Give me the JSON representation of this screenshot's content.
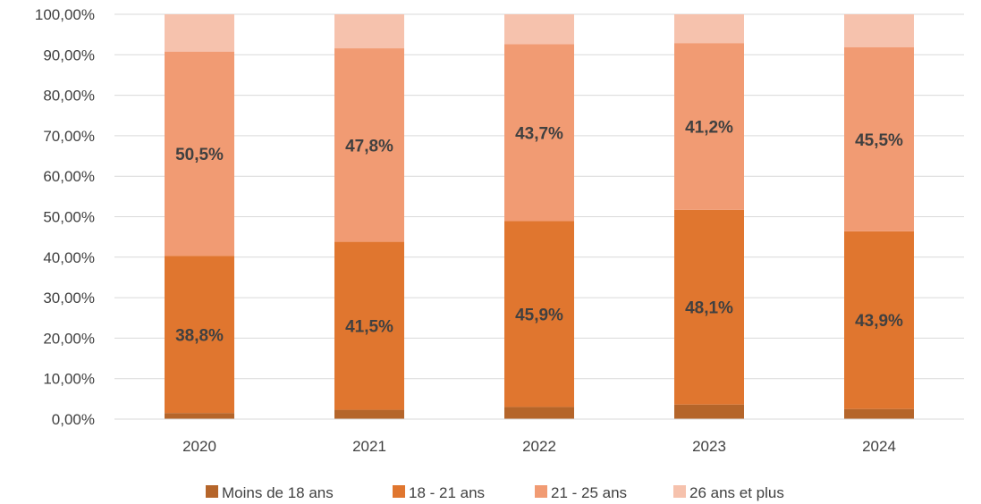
{
  "chart_data": {
    "type": "bar",
    "stacked": true,
    "categories": [
      "2020",
      "2021",
      "2022",
      "2023",
      "2024"
    ],
    "series": [
      {
        "name": "Moins de 18 ans",
        "color": "#B5652A",
        "values": [
          1.5,
          2.3,
          3.0,
          3.6,
          2.5
        ]
      },
      {
        "name": "18 - 21 ans",
        "color": "#E0762F",
        "values": [
          38.8,
          41.5,
          45.9,
          48.1,
          43.9
        ]
      },
      {
        "name": "21 - 25 ans",
        "color": "#F19B73",
        "values": [
          50.5,
          47.8,
          43.7,
          41.2,
          45.5
        ]
      },
      {
        "name": "26 ans et plus",
        "color": "#F6C2AD",
        "values": [
          9.2,
          8.4,
          7.4,
          7.1,
          8.1
        ]
      }
    ],
    "data_labels": {
      "18 - 21 ans": [
        "38,8%",
        "41,5%",
        "45,9%",
        "48,1%",
        "43,9%"
      ],
      "21 - 25 ans": [
        "50,5%",
        "47,8%",
        "43,7%",
        "41,2%",
        "45,5%"
      ]
    },
    "y_ticks": [
      "0,00%",
      "10,00%",
      "20,00%",
      "30,00%",
      "40,00%",
      "50,00%",
      "60,00%",
      "70,00%",
      "80,00%",
      "90,00%",
      "100,00%"
    ],
    "ylim": [
      0,
      100
    ],
    "title": "",
    "xlabel": "",
    "ylabel": "",
    "grid": true,
    "legend_position": "bottom"
  }
}
